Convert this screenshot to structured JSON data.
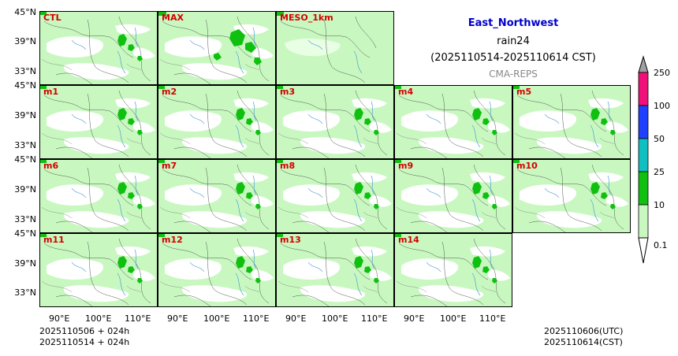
{
  "title": {
    "region": "East_Northwest",
    "variable": "rain24",
    "period": "(2025110514-2025110614 CST)",
    "source": "CMA-REPS"
  },
  "panels": [
    {
      "label": "CTL"
    },
    {
      "label": "MAX"
    },
    {
      "label": "MESO_1km"
    },
    {
      "label": "m1"
    },
    {
      "label": "m2"
    },
    {
      "label": "m3"
    },
    {
      "label": "m4"
    },
    {
      "label": "m5"
    },
    {
      "label": "m6"
    },
    {
      "label": "m7"
    },
    {
      "label": "m8"
    },
    {
      "label": "m9"
    },
    {
      "label": "m10"
    },
    {
      "label": "m11"
    },
    {
      "label": "m12"
    },
    {
      "label": "m13"
    },
    {
      "label": "m14"
    }
  ],
  "lat_ticks": [
    "45°N",
    "39°N",
    "33°N"
  ],
  "lon_ticks": [
    "90°E",
    "100°E",
    "110°E"
  ],
  "colorbar": {
    "labels": [
      "250",
      "100",
      "50",
      "25",
      "10",
      "0.1"
    ],
    "colors": [
      "#a0a0a0",
      "#f0107a",
      "#2040ff",
      "#10c0c0",
      "#10c010",
      "#c8f8c0"
    ]
  },
  "footer": {
    "left_line1": "2025110506  +  024h",
    "left_line2": "2025110514  +  024h",
    "right_line1": "2025110606(UTC)",
    "right_line2": "2025110614(CST)"
  }
}
